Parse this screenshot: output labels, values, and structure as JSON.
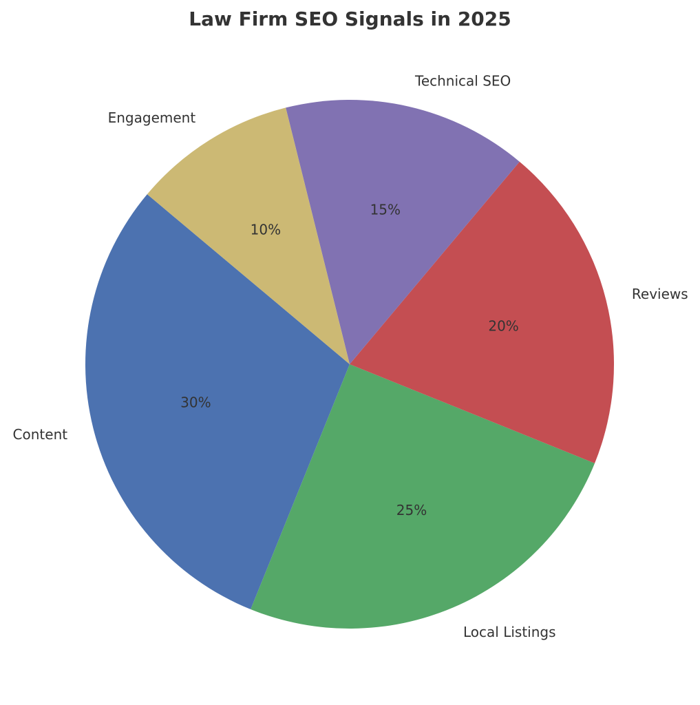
{
  "chart_data": {
    "type": "pie",
    "title": "Law Firm SEO Signals in 2025",
    "categories": [
      "Content",
      "Local Listings",
      "Reviews",
      "Technical SEO",
      "Engagement"
    ],
    "values": [
      30,
      25,
      20,
      15,
      10
    ],
    "percent_labels": [
      "30%",
      "25%",
      "20%",
      "15%",
      "10%"
    ],
    "colors": [
      "#4c72b0",
      "#55a868",
      "#c44e52",
      "#8172b2",
      "#ccb974"
    ],
    "start_angle_deg": 140,
    "direction": "counterclockwise",
    "legend": "none"
  }
}
